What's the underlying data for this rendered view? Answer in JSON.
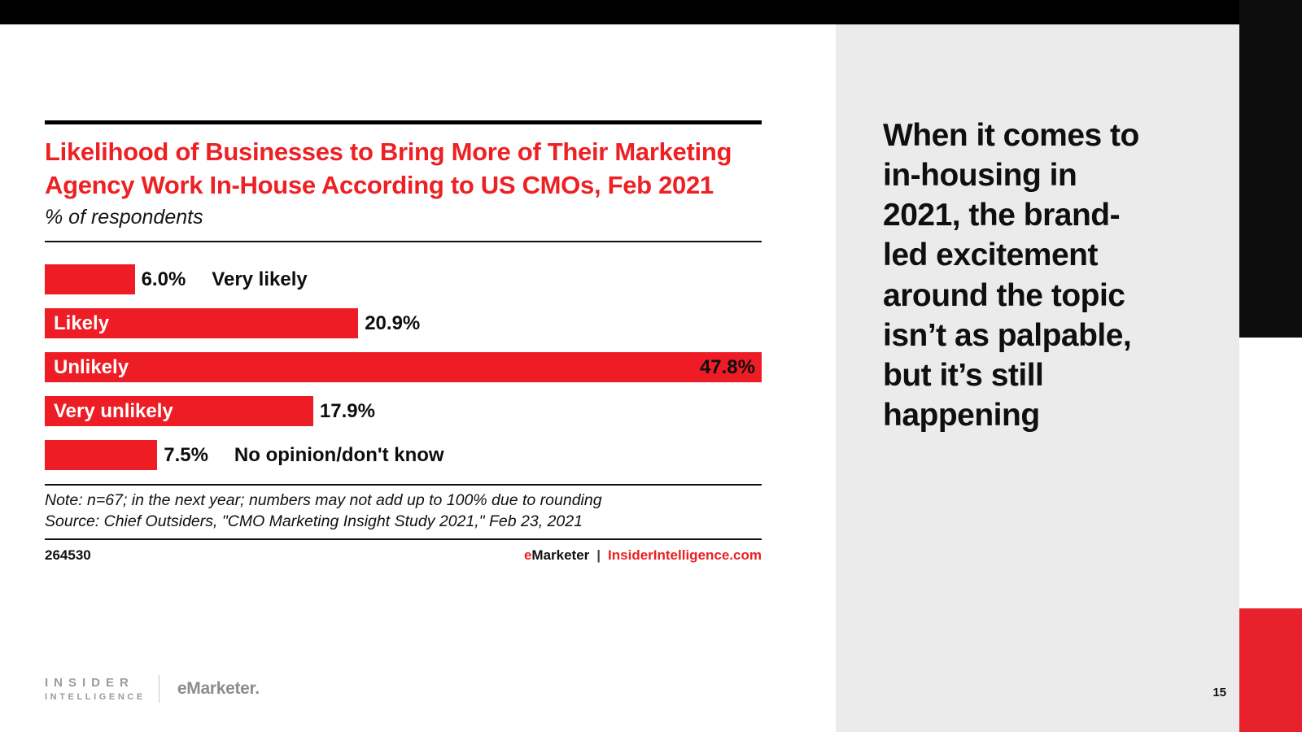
{
  "slide": {
    "quote": "When it comes to\nin-housing in\n2021, the brand-\nled excitement\naround the topic\nisn’t as palpable,\nbut it’s still\nhappening",
    "page_number": "15"
  },
  "chart": {
    "title": "Likelihood of Businesses to Bring More of Their Marketing Agency Work In-House According to US CMOs, Feb 2021",
    "subtitle": "% of respondents",
    "note_line1": "Note: n=67; in the next year; numbers may not add up to 100% due to rounding",
    "note_line2": "Source: Chief Outsiders, \"CMO Marketing Insight Study 2021,\" Feb 23, 2021",
    "chart_id": "264530",
    "brand_e": "e",
    "brand_marketer": "Marketer",
    "brand_sep": "|",
    "brand_site": "InsiderIntelligence.com"
  },
  "chart_data": {
    "type": "bar",
    "orientation": "horizontal",
    "title": "Likelihood of Businesses to Bring More of Their Marketing Agency Work In-House According to US CMOs, Feb 2021",
    "xlabel": "% of respondents",
    "ylabel": "",
    "categories": [
      "Very likely",
      "Likely",
      "Unlikely",
      "Very unlikely",
      "No opinion/don't know"
    ],
    "values": [
      6.0,
      20.9,
      47.8,
      17.9,
      7.5
    ],
    "value_labels": [
      "6.0%",
      "20.9%",
      "47.8%",
      "17.9%",
      "7.5%"
    ],
    "label_inside": [
      false,
      true,
      true,
      true,
      false
    ],
    "value_inside": [
      false,
      false,
      true,
      false,
      false
    ],
    "xlim": [
      0,
      47.8
    ],
    "grid": false,
    "legend": "none",
    "bar_color": "#ee1c25"
  },
  "footer": {
    "insider_line1": "INSIDER",
    "insider_line2": "INTELLIGENCE",
    "emarketer": "eMarketer."
  },
  "colors": {
    "accent_red": "#ed2024",
    "bar_red": "#ee1c25",
    "panel_gray": "#ebebeb",
    "black": "#000000"
  }
}
